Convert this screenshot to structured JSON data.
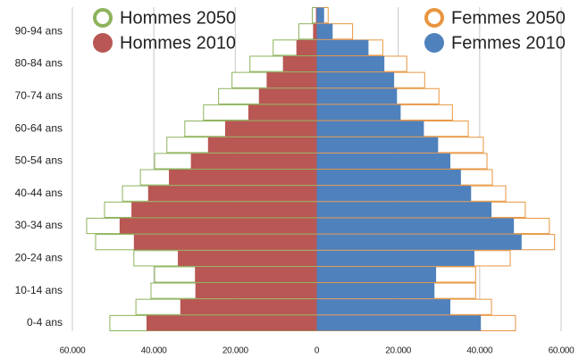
{
  "chart_data": {
    "type": "pyramid",
    "categories": [
      "0-4 ans",
      null,
      "10-14 ans",
      null,
      "20-24 ans",
      null,
      "30-34 ans",
      null,
      "40-44 ans",
      null,
      "50-54 ans",
      null,
      "60-64 ans",
      null,
      "70-74 ans",
      null,
      "80-84 ans",
      null,
      "90-94 ans",
      null
    ],
    "series": [
      {
        "name": "Hommes 2050",
        "color": "#8db35c",
        "style": "outline",
        "side": "left",
        "values": [
          50800,
          44400,
          40700,
          39800,
          44900,
          54300,
          56500,
          52100,
          47700,
          43300,
          39800,
          36800,
          32400,
          27800,
          24100,
          20800,
          16400,
          10700,
          4400,
          1100
        ]
      },
      {
        "name": "Femmes 2050",
        "color": "#e8953f",
        "style": "outline",
        "side": "right",
        "values": [
          48800,
          42900,
          39000,
          39000,
          47500,
          58400,
          57100,
          51200,
          46400,
          43100,
          41800,
          40900,
          37200,
          33300,
          30000,
          26500,
          22100,
          16200,
          8800,
          2800
        ]
      },
      {
        "name": "Hommes 2010",
        "color": "#b85753",
        "style": "filled",
        "side": "left",
        "values": [
          41800,
          33500,
          29800,
          29900,
          34100,
          44900,
          48400,
          45500,
          41400,
          36300,
          30900,
          26700,
          22500,
          16800,
          14200,
          12300,
          8300,
          5000,
          900,
          200
        ]
      },
      {
        "name": "Femmes 2010",
        "color": "#4f81bd",
        "style": "filled",
        "side": "right",
        "values": [
          40300,
          32800,
          28900,
          29300,
          38700,
          50300,
          48400,
          42900,
          37900,
          35400,
          32800,
          29800,
          26300,
          20600,
          19700,
          19000,
          16600,
          12700,
          3900,
          1800
        ]
      }
    ],
    "xlim": [
      -60000,
      60000
    ],
    "xticks": [
      {
        "value": -60000,
        "label": "60.000"
      },
      {
        "value": -40000,
        "label": "40.000"
      },
      {
        "value": -20000,
        "label": "20.000"
      },
      0,
      {
        "value": 20000,
        "label": "20.000"
      },
      {
        "value": 40000,
        "label": "40.000"
      },
      {
        "value": 60000,
        "label": "60.000"
      }
    ],
    "grid": true
  }
}
